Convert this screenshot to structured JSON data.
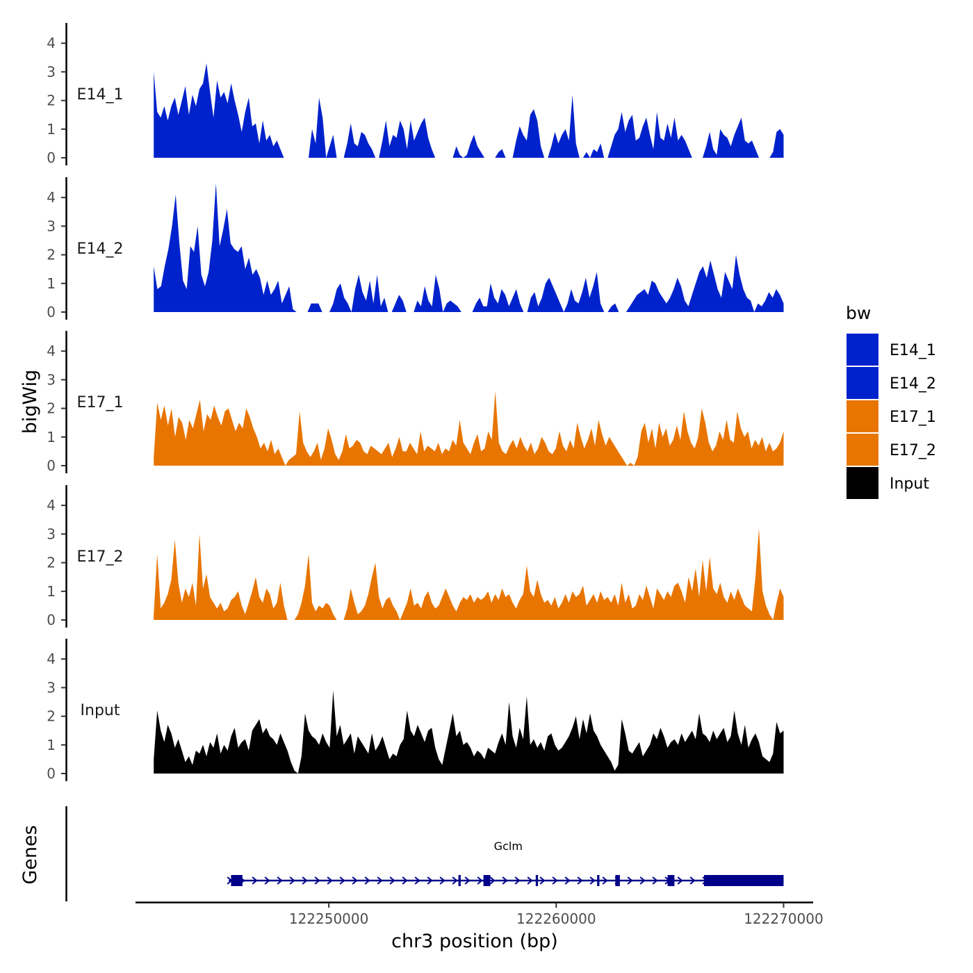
{
  "chart_data": {
    "type": "area",
    "ylabel": "bigWig",
    "genes_label": "Genes",
    "xlabel": "chr3 position (bp)",
    "chromosome": "chr3",
    "x_range": [
      122242300,
      122270000
    ],
    "xlim": [
      122241500,
      122271300
    ],
    "x_ticks": [
      122250000,
      122260000,
      122270000
    ],
    "x_tick_labels": [
      "122250000",
      "122260000",
      "122270000"
    ],
    "ylim": [
      0,
      4.8
    ],
    "y_ticks": [
      0,
      1,
      2,
      3,
      4
    ],
    "y_tick_labels": [
      "0",
      "1",
      "2",
      "3",
      "4"
    ],
    "legend": {
      "title": "bw",
      "entries": [
        {
          "label": "E14_1",
          "color": "#0022CC"
        },
        {
          "label": "E14_2",
          "color": "#0022CC"
        },
        {
          "label": "E17_1",
          "color": "#E87500"
        },
        {
          "label": "E17_2",
          "color": "#E87500"
        },
        {
          "label": "Input",
          "color": "#000000"
        }
      ]
    },
    "series": [
      {
        "name": "E14_1",
        "color": "#0022CC",
        "values": [
          3.0,
          1.6,
          1.4,
          1.8,
          1.3,
          1.8,
          2.1,
          1.5,
          2.0,
          2.5,
          1.5,
          2.2,
          1.8,
          2.4,
          2.6,
          3.3,
          2.3,
          1.4,
          2.7,
          2.1,
          2.3,
          1.9,
          2.6,
          2.0,
          1.5,
          0.9,
          1.6,
          2.1,
          1.1,
          1.2,
          0.5,
          1.3,
          0.6,
          0.8,
          0.4,
          0.6,
          0.3,
          0,
          0,
          0,
          0,
          0,
          0,
          0,
          0,
          1.0,
          0.5,
          2.1,
          1.4,
          0,
          0.4,
          0.8,
          0,
          0,
          0,
          0.5,
          1.2,
          0.5,
          0.4,
          0.9,
          0.8,
          0.5,
          0.3,
          0,
          0,
          0.6,
          1.3,
          0.4,
          0.8,
          0.7,
          1.3,
          1.0,
          0.3,
          1.3,
          0.6,
          0.9,
          1.2,
          1.4,
          0.7,
          0.3,
          0,
          0,
          0,
          0,
          0,
          0,
          0.4,
          0.1,
          0,
          0.1,
          0.5,
          0.8,
          0.4,
          0.2,
          0,
          0,
          0,
          0,
          0.2,
          0.3,
          0,
          0,
          0,
          0.6,
          1.1,
          0.8,
          0.6,
          1.5,
          1.7,
          1.3,
          0.4,
          0,
          0,
          0.4,
          0.9,
          0.5,
          0.8,
          1.0,
          0.6,
          2.2,
          0.5,
          0,
          0,
          0.2,
          0,
          0.3,
          0.2,
          0.5,
          0,
          0,
          0.4,
          0.8,
          1.0,
          1.6,
          0.9,
          1.3,
          1.5,
          0.6,
          0.7,
          1.1,
          1.4,
          0.8,
          0.3,
          1.6,
          0.7,
          0.6,
          1.2,
          0.7,
          1.4,
          0.6,
          0.8,
          0.6,
          0.3,
          0,
          0,
          0,
          0,
          0.4,
          0.9,
          0.3,
          0.1,
          1.0,
          0.8,
          0.7,
          0.4,
          0.8,
          1.1,
          1.4,
          0.6,
          0.5,
          0.6,
          0.3,
          0,
          0,
          0,
          0,
          0.2,
          0.9,
          1.0,
          0.8
        ]
      },
      {
        "name": "E14_2",
        "color": "#0022CC",
        "values": [
          1.6,
          0.8,
          0.9,
          1.6,
          2.2,
          3.0,
          4.1,
          2.4,
          1.1,
          0.8,
          2.3,
          2.1,
          3.0,
          1.3,
          0.9,
          1.4,
          2.5,
          4.5,
          2.3,
          2.9,
          3.6,
          2.4,
          2.2,
          2.1,
          2.3,
          1.5,
          1.9,
          1.3,
          1.5,
          1.2,
          0.6,
          1.1,
          0.6,
          0.8,
          1.1,
          0.3,
          0.6,
          0.9,
          0.1,
          0,
          0,
          0,
          0,
          0.3,
          0.3,
          0.3,
          0,
          0,
          0,
          0.3,
          0.8,
          1.0,
          0.5,
          0.3,
          0,
          0.8,
          1.3,
          0.7,
          0.4,
          1.1,
          0.3,
          1.3,
          0.2,
          0.5,
          0,
          0,
          0.3,
          0.6,
          0.4,
          0,
          0,
          0,
          0.4,
          0.2,
          0.9,
          0.4,
          0.2,
          1.3,
          0.8,
          0,
          0.3,
          0.4,
          0.3,
          0.2,
          0,
          0,
          0,
          0,
          0.3,
          0.5,
          0.2,
          0.2,
          1.0,
          0.5,
          0.3,
          0.8,
          0.6,
          0.2,
          0.5,
          0.8,
          0.3,
          0,
          0,
          0.5,
          0.7,
          0.2,
          0.5,
          1.0,
          1.2,
          0.9,
          0.6,
          0.3,
          0,
          0.3,
          0.8,
          0.4,
          0.3,
          0.7,
          1.2,
          0.5,
          0.9,
          1.4,
          0.3,
          0,
          0,
          0.2,
          0.3,
          0,
          0,
          0,
          0.2,
          0.4,
          0.6,
          0.7,
          0.8,
          0.6,
          1.1,
          1.0,
          0.7,
          0.5,
          0.3,
          0.5,
          0.8,
          1.2,
          0.9,
          0.4,
          0.2,
          0.6,
          1.0,
          1.4,
          1.6,
          1.2,
          1.8,
          1.3,
          0.8,
          0.5,
          1.4,
          1.1,
          0.8,
          2.0,
          1.3,
          0.8,
          0.5,
          0.4,
          0,
          0.3,
          0.2,
          0.4,
          0.7,
          0.5,
          0.8,
          0.6,
          0.3
        ]
      },
      {
        "name": "E17_1",
        "color": "#E87500",
        "values": [
          0.3,
          2.2,
          1.6,
          2.1,
          1.4,
          2.0,
          1.0,
          1.7,
          1.5,
          0.9,
          1.6,
          1.3,
          1.8,
          2.3,
          1.2,
          1.8,
          1.6,
          2.1,
          1.7,
          1.4,
          1.9,
          2.0,
          1.6,
          1.2,
          1.5,
          1.3,
          2.0,
          1.7,
          1.3,
          1.0,
          0.6,
          0.8,
          0.5,
          0.9,
          0.4,
          0.6,
          0.3,
          0,
          0.2,
          0.3,
          0.4,
          1.9,
          0.8,
          0.5,
          0.3,
          0.5,
          0.8,
          0.2,
          0.6,
          1.3,
          0.9,
          0.4,
          0.2,
          0.5,
          1.1,
          0.6,
          0.7,
          0.9,
          0.8,
          0.5,
          0.4,
          0.7,
          0.6,
          0.5,
          0.4,
          0.6,
          0.8,
          0.3,
          0.6,
          1.0,
          0.5,
          0.5,
          0.8,
          0.6,
          0.4,
          1.2,
          0.5,
          0.7,
          0.6,
          0.5,
          0.8,
          0.4,
          0.6,
          0.5,
          0.9,
          0.7,
          1.6,
          0.8,
          0.6,
          0.4,
          0.8,
          1.1,
          0.5,
          0.6,
          1.2,
          0.9,
          2.6,
          0.8,
          0.5,
          0.4,
          0.7,
          0.9,
          0.6,
          1.0,
          0.7,
          0.5,
          0.8,
          0.4,
          0.6,
          1.0,
          0.8,
          0.5,
          0.4,
          0.6,
          1.2,
          0.7,
          0.5,
          0.9,
          0.6,
          1.5,
          1.0,
          0.6,
          0.9,
          1.3,
          0.7,
          1.6,
          1.1,
          0.7,
          1.0,
          0.8,
          0.6,
          0.4,
          0.2,
          0,
          0.1,
          0,
          0.3,
          1.2,
          1.5,
          0.8,
          1.3,
          0.6,
          1.5,
          1.0,
          1.3,
          0.7,
          0.9,
          1.4,
          0.9,
          1.9,
          1.2,
          0.8,
          0.6,
          1.0,
          2.0,
          1.5,
          0.8,
          0.5,
          0.7,
          1.2,
          0.9,
          1.6,
          0.9,
          0.8,
          1.9,
          1.3,
          1.0,
          1.2,
          0.6,
          0.9,
          0.7,
          1.0,
          0.5,
          0.8,
          0.5,
          0.6,
          0.8,
          1.2
        ]
      },
      {
        "name": "E17_2",
        "color": "#E87500",
        "values": [
          0.2,
          2.3,
          0.4,
          0.6,
          0.9,
          1.4,
          2.8,
          1.3,
          0.6,
          1.1,
          0.8,
          1.3,
          0.5,
          3.0,
          1.1,
          1.6,
          0.8,
          0.6,
          0.4,
          0.6,
          0.3,
          0.4,
          0.7,
          0.8,
          1.0,
          0.5,
          0.2,
          0.6,
          1.0,
          1.5,
          0.8,
          0.6,
          1.1,
          0.9,
          0.4,
          0.6,
          1.3,
          0.5,
          0,
          0,
          0,
          0.2,
          0.6,
          1.2,
          2.3,
          0.6,
          0.3,
          0.5,
          0.4,
          0.6,
          0.5,
          0.2,
          0,
          0,
          0,
          0.4,
          1.1,
          0.6,
          0.2,
          0.3,
          0.5,
          0.9,
          1.5,
          2.0,
          0.8,
          0.4,
          0.7,
          0.8,
          0.5,
          0.3,
          0,
          0.3,
          0.6,
          1.1,
          0.5,
          0.6,
          0.4,
          0.8,
          1.0,
          0.6,
          0.4,
          0.5,
          0.8,
          1.1,
          0.8,
          0.5,
          0.3,
          0.6,
          0.8,
          0.7,
          0.9,
          0.6,
          0.8,
          0.7,
          0.8,
          1.0,
          0.6,
          0.9,
          0.7,
          1.1,
          0.8,
          0.9,
          0.6,
          0.4,
          0.7,
          0.9,
          1.9,
          1.0,
          0.8,
          1.4,
          0.9,
          0.6,
          0.7,
          0.5,
          0.8,
          0.4,
          0.6,
          0.9,
          0.6,
          1.0,
          0.8,
          0.9,
          1.2,
          0.5,
          0.7,
          0.9,
          0.6,
          1.0,
          0.7,
          0.8,
          0.6,
          0.9,
          0.5,
          1.3,
          0.6,
          0.9,
          0.4,
          0.5,
          0.9,
          0.7,
          1.2,
          0.8,
          0.4,
          1.1,
          0.9,
          0.7,
          1.0,
          0.8,
          1.2,
          1.3,
          1.0,
          0.6,
          1.5,
          1.0,
          1.8,
          0.8,
          2.1,
          1.0,
          2.2,
          1.1,
          0.9,
          1.3,
          0.8,
          0.6,
          1.0,
          0.7,
          1.1,
          0.8,
          0.5,
          0.4,
          0.3,
          1.5,
          3.2,
          1.0,
          0.5,
          0.2,
          0,
          0.6,
          1.1,
          0.8
        ]
      },
      {
        "name": "Input",
        "color": "#000000",
        "values": [
          0.5,
          2.2,
          1.5,
          1.1,
          1.7,
          1.4,
          0.9,
          1.2,
          0.8,
          0.4,
          0.6,
          0.3,
          0.8,
          0.7,
          1.0,
          0.6,
          1.1,
          0.9,
          1.4,
          0.7,
          1.0,
          0.8,
          1.3,
          1.6,
          0.9,
          1.1,
          1.2,
          0.8,
          1.5,
          1.7,
          1.9,
          1.4,
          1.6,
          1.3,
          1.2,
          1.0,
          1.4,
          1.1,
          0.8,
          0.4,
          0.1,
          0,
          0.6,
          2.1,
          1.5,
          1.3,
          1.2,
          1.0,
          1.4,
          1.1,
          0.9,
          2.9,
          1.3,
          1.7,
          1.0,
          1.2,
          1.4,
          0.7,
          1.3,
          1.1,
          0.9,
          0.7,
          1.4,
          0.8,
          1.0,
          1.3,
          0.9,
          0.5,
          0.7,
          0.6,
          1.0,
          1.2,
          2.2,
          1.5,
          1.3,
          1.7,
          1.4,
          1.1,
          1.5,
          1.6,
          0.9,
          0.5,
          0.3,
          0.9,
          1.5,
          2.1,
          1.3,
          1.5,
          1.0,
          1.1,
          0.9,
          0.6,
          0.8,
          0.7,
          0.5,
          0.9,
          0.8,
          0.7,
          1.1,
          1.4,
          1.0,
          2.5,
          1.3,
          0.9,
          1.6,
          1.2,
          2.7,
          1.0,
          1.2,
          0.9,
          1.1,
          0.8,
          1.3,
          1.4,
          1.0,
          0.8,
          0.9,
          1.1,
          1.3,
          1.6,
          2.0,
          1.2,
          1.9,
          1.4,
          2.1,
          1.5,
          1.3,
          1.0,
          0.8,
          0.6,
          0.4,
          0.1,
          0.3,
          1.9,
          1.4,
          0.8,
          0.7,
          0.9,
          1.1,
          0.6,
          0.8,
          1.0,
          1.4,
          1.2,
          1.6,
          1.3,
          0.9,
          1.1,
          1.2,
          1.0,
          1.4,
          1.1,
          1.3,
          1.5,
          1.2,
          2.1,
          1.4,
          1.3,
          1.1,
          1.5,
          1.2,
          1.4,
          1.6,
          1.1,
          1.3,
          2.2,
          1.4,
          1.0,
          1.7,
          0.9,
          1.2,
          1.4,
          1.1,
          0.6,
          0.5,
          0.4,
          0.7,
          1.8,
          1.4,
          1.5
        ]
      }
    ],
    "gene_track": {
      "gene_name": "Gclm",
      "strand": "+",
      "start": 122245600,
      "end": 122270000,
      "exons": [
        [
          122245700,
          122246200
        ],
        [
          122255700,
          122255800
        ],
        [
          122256800,
          122257100
        ],
        [
          122259100,
          122259200
        ],
        [
          122261800,
          122261900
        ],
        [
          122262600,
          122262800
        ],
        [
          122264900,
          122265200
        ],
        [
          122266500,
          122270000
        ]
      ]
    }
  }
}
